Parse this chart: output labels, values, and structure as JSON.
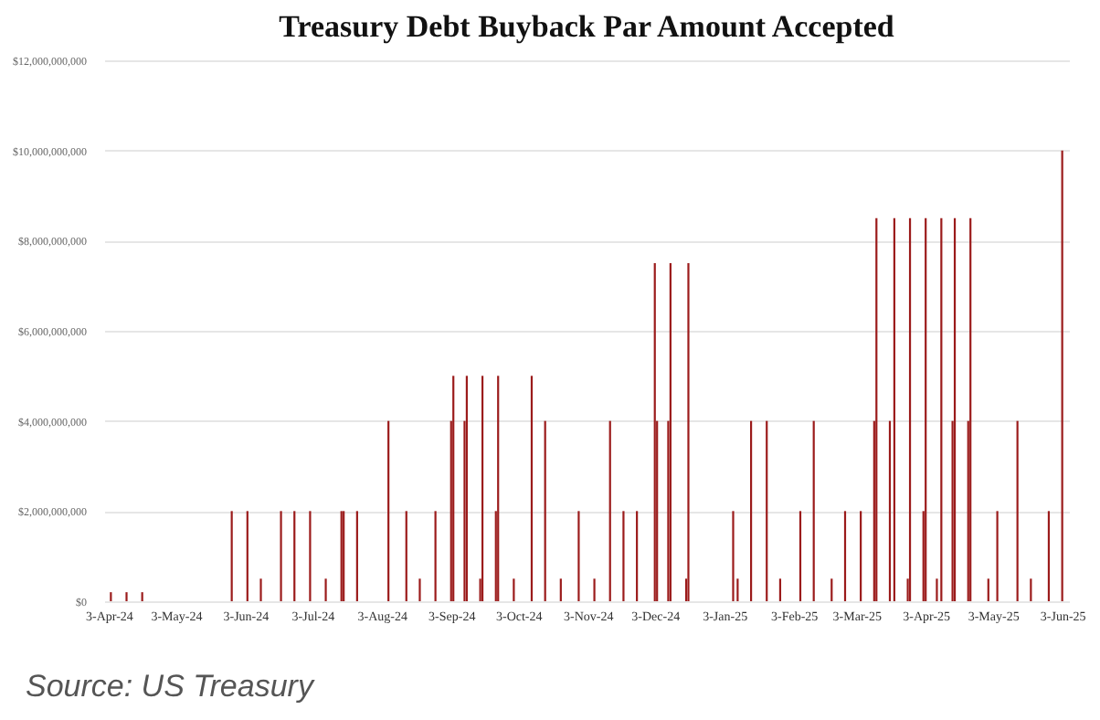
{
  "chart_data": {
    "type": "bar",
    "title": "Treasury Debt Buyback Par Amount Accepted",
    "x": [
      "2024-04-04",
      "2024-04-11",
      "2024-04-18",
      "2024-05-28",
      "2024-06-04",
      "2024-06-10",
      "2024-06-19",
      "2024-06-25",
      "2024-07-02",
      "2024-07-09",
      "2024-07-16",
      "2024-07-17",
      "2024-07-23",
      "2024-08-06",
      "2024-08-14",
      "2024-08-20",
      "2024-08-27",
      "2024-09-03",
      "2024-09-04",
      "2024-09-09",
      "2024-09-10",
      "2024-09-16",
      "2024-09-17",
      "2024-09-23",
      "2024-09-24",
      "2024-10-01",
      "2024-10-09",
      "2024-10-15",
      "2024-10-22",
      "2024-10-30",
      "2024-11-06",
      "2024-11-13",
      "2024-11-19",
      "2024-11-25",
      "2024-12-03",
      "2024-12-04",
      "2024-12-09",
      "2024-12-10",
      "2024-12-17",
      "2024-12-18",
      "2025-01-07",
      "2025-01-09",
      "2025-01-15",
      "2025-01-22",
      "2025-01-28",
      "2025-02-06",
      "2025-02-12",
      "2025-02-20",
      "2025-02-26",
      "2025-03-05",
      "2025-03-11",
      "2025-03-12",
      "2025-03-18",
      "2025-03-20",
      "2025-03-26",
      "2025-03-27",
      "2025-04-02",
      "2025-04-03",
      "2025-04-08",
      "2025-04-10",
      "2025-04-15",
      "2025-04-16",
      "2025-04-22",
      "2025-04-23",
      "2025-05-01",
      "2025-05-05",
      "2025-05-14",
      "2025-05-20",
      "2025-05-28",
      "2025-06-03"
    ],
    "series": [
      {
        "color": "#9b1b1b",
        "values": [
          200000000,
          200000000,
          200000000,
          2000000000,
          2000000000,
          500000000,
          2000000000,
          2000000000,
          2000000000,
          500000000,
          2000000000,
          2000000000,
          2000000000,
          4000000000,
          2000000000,
          500000000,
          2000000000,
          4000000000,
          5000000000,
          4000000000,
          5000000000,
          500000000,
          5000000000,
          2000000000,
          5000000000,
          500000000,
          5000000000,
          4000000000,
          500000000,
          2000000000,
          500000000,
          4000000000,
          2000000000,
          2000000000,
          7500000000,
          4000000000,
          4000000000,
          7500000000,
          500000000,
          7500000000,
          2000000000,
          500000000,
          4000000000,
          4000000000,
          500000000,
          2000000000,
          4000000000,
          500000000,
          2000000000,
          2000000000,
          4000000000,
          8500000000,
          4000000000,
          8500000000,
          500000000,
          8500000000,
          2000000000,
          8500000000,
          500000000,
          8500000000,
          4000000000,
          8500000000,
          4000000000,
          8500000000,
          500000000,
          2000000000,
          4000000000,
          500000000,
          2000000000,
          10000000000
        ]
      }
    ],
    "xlim": [
      "2024-04-01",
      "2025-06-06"
    ],
    "xticks": [
      {
        "value": "2024-04-03",
        "label": "3-Apr-24"
      },
      {
        "value": "2024-05-03",
        "label": "3-May-24"
      },
      {
        "value": "2024-06-03",
        "label": "3-Jun-24"
      },
      {
        "value": "2024-07-03",
        "label": "3-Jul-24"
      },
      {
        "value": "2024-08-03",
        "label": "3-Aug-24"
      },
      {
        "value": "2024-09-03",
        "label": "3-Sep-24"
      },
      {
        "value": "2024-10-03",
        "label": "3-Oct-24"
      },
      {
        "value": "2024-11-03",
        "label": "3-Nov-24"
      },
      {
        "value": "2024-12-03",
        "label": "3-Dec-24"
      },
      {
        "value": "2025-01-03",
        "label": "3-Jan-25"
      },
      {
        "value": "2025-02-03",
        "label": "3-Feb-25"
      },
      {
        "value": "2025-03-03",
        "label": "3-Mar-25"
      },
      {
        "value": "2025-04-03",
        "label": "3-Apr-25"
      },
      {
        "value": "2025-05-03",
        "label": "3-May-25"
      },
      {
        "value": "2025-06-03",
        "label": "3-Jun-25"
      }
    ],
    "ylim": [
      0,
      12000000000
    ],
    "yticks": [
      {
        "value": 0,
        "label": "$0"
      },
      {
        "value": 2000000000,
        "label": "$2,000,000,000"
      },
      {
        "value": 4000000000,
        "label": "$4,000,000,000"
      },
      {
        "value": 6000000000,
        "label": "$6,000,000,000"
      },
      {
        "value": 8000000000,
        "label": "$8,000,000,000"
      },
      {
        "value": 10000000000,
        "label": "$10,000,000,000"
      },
      {
        "value": 12000000000,
        "label": "$12,000,000,000"
      }
    ],
    "grid": "y",
    "annotations": [
      "Source: US Treasury"
    ]
  }
}
